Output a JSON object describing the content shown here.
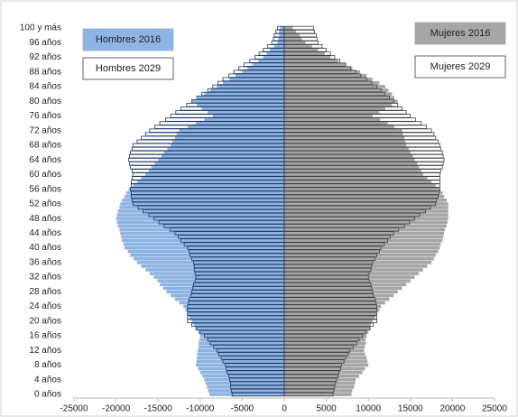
{
  "chart_data": {
    "type": "pyramid",
    "categories": [
      "0 años",
      null,
      null,
      null,
      "4 años",
      null,
      null,
      null,
      "8 años",
      null,
      null,
      null,
      "12 años",
      null,
      null,
      null,
      "16 años",
      null,
      null,
      null,
      "20 años",
      null,
      null,
      null,
      "24 años",
      null,
      null,
      null,
      "28 años",
      null,
      null,
      null,
      "32 años",
      null,
      null,
      null,
      "36 años",
      null,
      null,
      null,
      "40 años",
      null,
      null,
      null,
      "44 años",
      null,
      null,
      null,
      "48 años",
      null,
      null,
      null,
      "52 años",
      null,
      null,
      null,
      "56 años",
      null,
      null,
      null,
      "60 años",
      null,
      null,
      null,
      "64 años",
      null,
      null,
      null,
      "68 años",
      null,
      null,
      null,
      "72 años",
      null,
      null,
      null,
      "76 años",
      null,
      null,
      null,
      "80 años",
      null,
      null,
      null,
      "84 años",
      null,
      null,
      null,
      "88 años",
      null,
      null,
      null,
      "92 años",
      null,
      null,
      null,
      "96 años",
      null,
      null,
      null,
      "100 y más"
    ],
    "xlim": [
      -25000,
      25000
    ],
    "xticks": [
      -25000,
      -20000,
      -15000,
      -10000,
      -5000,
      0,
      5000,
      10000,
      15000,
      20000,
      25000
    ],
    "series": [
      {
        "name": "Hombres 2016",
        "color": "#8db4e2",
        "filled": true,
        "values": [
          -8900,
          -9050,
          -9200,
          -9350,
          -9500,
          -9750,
          -10000,
          -10250,
          -10500,
          -10450,
          -10400,
          -10350,
          -10300,
          -10200,
          -10200,
          -10100,
          -10000,
          -10250,
          -10500,
          -10750,
          -11000,
          -11250,
          -11500,
          -11750,
          -12000,
          -12500,
          -13000,
          -13500,
          -14000,
          -14400,
          -14800,
          -15100,
          -15500,
          -16000,
          -16500,
          -17000,
          -17500,
          -17900,
          -18300,
          -18600,
          -19000,
          -19100,
          -19300,
          -19400,
          -19500,
          -19600,
          -19800,
          -19900,
          -20000,
          -19900,
          -19800,
          -19600,
          -19500,
          -19300,
          -19000,
          -18800,
          -18500,
          -18000,
          -17500,
          -17000,
          -16500,
          -16100,
          -15800,
          -15400,
          -15000,
          -14600,
          -14300,
          -13900,
          -13500,
          -13300,
          -13000,
          -12800,
          -12500,
          -11500,
          -10500,
          -9500,
          -8500,
          -9100,
          -9800,
          -10400,
          -11000,
          -10300,
          -9500,
          -8800,
          -8000,
          -7300,
          -6500,
          -5800,
          -5000,
          -4400,
          -3800,
          -3100,
          -2500,
          -2100,
          -1700,
          -1200,
          -800,
          -700,
          -600,
          -600,
          -500
        ]
      },
      {
        "name": "Hombres 2029",
        "color": "#1f3864",
        "filled": false,
        "values": [
          -6200,
          -6300,
          -6400,
          -6400,
          -6500,
          -6600,
          -6800,
          -6900,
          -7000,
          -7300,
          -7500,
          -7800,
          -8000,
          -8400,
          -8800,
          -9100,
          -9500,
          -10000,
          -10500,
          -11000,
          -11500,
          -11500,
          -11500,
          -11500,
          -11500,
          -11400,
          -11300,
          -11100,
          -11000,
          -10900,
          -10800,
          -10600,
          -10500,
          -10600,
          -10700,
          -10700,
          -10800,
          -11000,
          -11200,
          -11300,
          -11500,
          -11900,
          -12300,
          -12600,
          -13000,
          -13600,
          -14300,
          -14900,
          -15500,
          -16100,
          -16800,
          -17400,
          -18000,
          -18100,
          -18200,
          -18200,
          -18300,
          -18200,
          -18200,
          -18100,
          -18000,
          -18100,
          -18300,
          -18400,
          -18500,
          -18400,
          -18300,
          -18100,
          -18000,
          -17500,
          -17000,
          -16500,
          -16000,
          -15400,
          -14800,
          -14100,
          -13500,
          -12900,
          -12300,
          -11600,
          -11000,
          -10400,
          -9800,
          -9100,
          -8500,
          -7900,
          -7300,
          -6600,
          -6000,
          -5400,
          -4800,
          -4100,
          -3500,
          -3000,
          -2500,
          -2000,
          -1500,
          -1300,
          -1200,
          -1000,
          -800
        ]
      },
      {
        "name": "Mujeres 2016",
        "color": "#a6a6a6",
        "filled": true,
        "values": [
          8000,
          8100,
          8300,
          8400,
          8500,
          8900,
          9300,
          9600,
          10000,
          9900,
          9800,
          9600,
          9500,
          9600,
          9700,
          9700,
          9800,
          10000,
          10200,
          10300,
          10500,
          10800,
          11000,
          11300,
          11500,
          12000,
          12500,
          13000,
          13500,
          14000,
          14500,
          15000,
          15500,
          16000,
          16500,
          17000,
          17500,
          17800,
          18000,
          18300,
          18500,
          18600,
          18800,
          18900,
          19000,
          19100,
          19300,
          19400,
          19500,
          19500,
          19500,
          19500,
          19500,
          19300,
          19000,
          18800,
          18500,
          18000,
          17500,
          17000,
          16500,
          16300,
          16000,
          15800,
          15500,
          15300,
          15000,
          14800,
          14500,
          14400,
          14300,
          14100,
          14000,
          13100,
          12300,
          11400,
          10500,
          11300,
          12000,
          12800,
          13500,
          13100,
          12800,
          12400,
          12000,
          11300,
          10500,
          9800,
          9000,
          8100,
          7300,
          6400,
          5500,
          4800,
          4000,
          3300,
          2500,
          2100,
          1800,
          1400,
          1000
        ]
      },
      {
        "name": "Mujeres 2029",
        "color": "#404040",
        "filled": false,
        "values": [
          5800,
          5900,
          6000,
          6100,
          6200,
          6400,
          6500,
          6700,
          6800,
          7100,
          7300,
          7600,
          7800,
          8200,
          8600,
          8900,
          9300,
          9700,
          10200,
          10600,
          11000,
          11000,
          11000,
          11000,
          11000,
          10900,
          10800,
          10600,
          10500,
          10400,
          10300,
          10100,
          10000,
          10100,
          10300,
          10400,
          10500,
          10800,
          11000,
          11300,
          11500,
          11900,
          12300,
          12600,
          13000,
          13600,
          14300,
          14900,
          15500,
          16100,
          16800,
          17400,
          18000,
          18100,
          18300,
          18400,
          18500,
          18500,
          18500,
          18500,
          18500,
          18600,
          18800,
          18900,
          19000,
          18900,
          18800,
          18600,
          18500,
          18300,
          18000,
          17800,
          17500,
          16900,
          16300,
          15600,
          15000,
          14500,
          14000,
          13500,
          13000,
          12500,
          12000,
          11500,
          11000,
          10400,
          9800,
          9100,
          8500,
          7900,
          7300,
          6600,
          6000,
          5500,
          5000,
          4500,
          4000,
          3900,
          3800,
          3600,
          3500
        ]
      }
    ]
  }
}
